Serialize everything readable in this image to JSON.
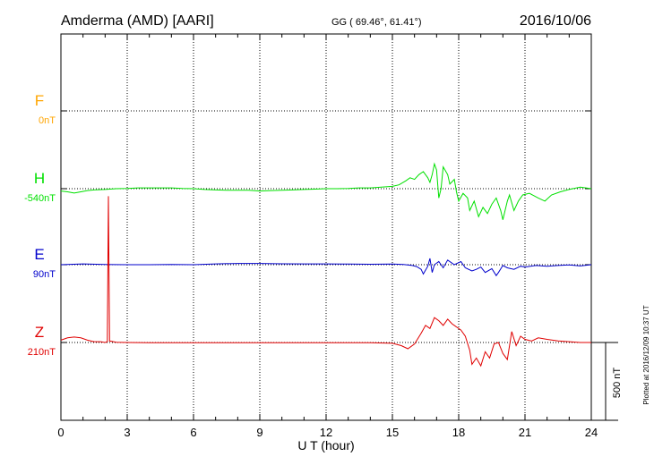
{
  "header": {
    "station": "Amderma (AMD)  [AARI]",
    "coords": "GG ( 69.46°,  61.41°)",
    "date": "2016/10/06"
  },
  "footer": {
    "plotted": "Plotted at 2016/12/09 10:37 UT"
  },
  "scale": {
    "label": "500 nT",
    "value_nT": 500
  },
  "colors": {
    "F": "#ffa500",
    "H": "#00e000",
    "E": "#0000cc",
    "Z": "#e00000",
    "axis": "#000000",
    "grid": "#000000"
  },
  "chart_data": {
    "type": "line",
    "xlabel": "U T (hour)",
    "xlim": [
      0,
      24
    ],
    "xticks": [
      0,
      3,
      6,
      9,
      12,
      15,
      18,
      21,
      24
    ],
    "grid": true,
    "series": [
      {
        "name": "F",
        "baseline_label": "0nT",
        "baseline_nT": 0,
        "points": []
      },
      {
        "name": "H",
        "baseline_label": "-540nT",
        "baseline_nT": -540,
        "points": [
          [
            0,
            -555
          ],
          [
            0.3,
            -560
          ],
          [
            0.6,
            -568
          ],
          [
            0.9,
            -560
          ],
          [
            1.2,
            -552
          ],
          [
            1.5,
            -548
          ],
          [
            2,
            -545
          ],
          [
            2.5,
            -540
          ],
          [
            3,
            -538
          ],
          [
            3.5,
            -535
          ],
          [
            4,
            -535
          ],
          [
            4.5,
            -535
          ],
          [
            5,
            -535
          ],
          [
            5.5,
            -538
          ],
          [
            6,
            -540
          ],
          [
            6.5,
            -545
          ],
          [
            7,
            -548
          ],
          [
            7.5,
            -550
          ],
          [
            8,
            -550
          ],
          [
            8.5,
            -550
          ],
          [
            9,
            -555
          ],
          [
            9.5,
            -552
          ],
          [
            10,
            -550
          ],
          [
            10.5,
            -548
          ],
          [
            11,
            -545
          ],
          [
            11.5,
            -543
          ],
          [
            12,
            -540
          ],
          [
            12.5,
            -540
          ],
          [
            13,
            -538
          ],
          [
            13.5,
            -535
          ],
          [
            14,
            -535
          ],
          [
            14.5,
            -530
          ],
          [
            15,
            -525
          ],
          [
            15.3,
            -515
          ],
          [
            15.6,
            -490
          ],
          [
            15.8,
            -470
          ],
          [
            16,
            -480
          ],
          [
            16.2,
            -450
          ],
          [
            16.4,
            -430
          ],
          [
            16.6,
            -470
          ],
          [
            16.7,
            -500
          ],
          [
            16.8,
            -450
          ],
          [
            16.9,
            -380
          ],
          [
            17,
            -420
          ],
          [
            17.1,
            -600
          ],
          [
            17.2,
            -540
          ],
          [
            17.3,
            -400
          ],
          [
            17.5,
            -450
          ],
          [
            17.6,
            -510
          ],
          [
            17.8,
            -480
          ],
          [
            17.9,
            -560
          ],
          [
            18,
            -620
          ],
          [
            18.2,
            -570
          ],
          [
            18.4,
            -600
          ],
          [
            18.5,
            -680
          ],
          [
            18.7,
            -620
          ],
          [
            18.9,
            -720
          ],
          [
            19.1,
            -660
          ],
          [
            19.3,
            -700
          ],
          [
            19.5,
            -640
          ],
          [
            19.7,
            -600
          ],
          [
            19.9,
            -680
          ],
          [
            20,
            -740
          ],
          [
            20.2,
            -620
          ],
          [
            20.3,
            -580
          ],
          [
            20.5,
            -680
          ],
          [
            20.7,
            -620
          ],
          [
            20.9,
            -580
          ],
          [
            21.2,
            -570
          ],
          [
            21.6,
            -600
          ],
          [
            21.9,
            -620
          ],
          [
            22.2,
            -580
          ],
          [
            22.6,
            -560
          ],
          [
            23,
            -545
          ],
          [
            23.5,
            -530
          ],
          [
            24,
            -540
          ]
        ]
      },
      {
        "name": "E",
        "baseline_label": "90nT",
        "baseline_nT": 90,
        "points": [
          [
            0,
            90
          ],
          [
            1,
            95
          ],
          [
            2,
            92
          ],
          [
            3,
            90
          ],
          [
            4,
            90
          ],
          [
            5,
            92
          ],
          [
            6,
            90
          ],
          [
            7,
            95
          ],
          [
            8,
            98
          ],
          [
            9,
            98
          ],
          [
            10,
            96
          ],
          [
            11,
            95
          ],
          [
            12,
            95
          ],
          [
            13,
            94
          ],
          [
            14,
            93
          ],
          [
            15,
            94
          ],
          [
            15.5,
            92
          ],
          [
            15.9,
            85
          ],
          [
            16.1,
            78
          ],
          [
            16.3,
            60
          ],
          [
            16.4,
            30
          ],
          [
            16.6,
            80
          ],
          [
            16.7,
            130
          ],
          [
            16.8,
            40
          ],
          [
            16.9,
            90
          ],
          [
            17.1,
            110
          ],
          [
            17.3,
            70
          ],
          [
            17.5,
            120
          ],
          [
            17.8,
            90
          ],
          [
            18.1,
            110
          ],
          [
            18.3,
            70
          ],
          [
            18.6,
            50
          ],
          [
            18.8,
            60
          ],
          [
            19,
            75
          ],
          [
            19.2,
            40
          ],
          [
            19.5,
            65
          ],
          [
            19.7,
            20
          ],
          [
            19.8,
            40
          ],
          [
            20,
            85
          ],
          [
            20.2,
            70
          ],
          [
            20.5,
            60
          ],
          [
            20.8,
            80
          ],
          [
            21,
            75
          ],
          [
            21.5,
            85
          ],
          [
            22,
            80
          ],
          [
            22.5,
            85
          ],
          [
            23,
            88
          ],
          [
            23.5,
            82
          ],
          [
            24,
            90
          ]
        ]
      },
      {
        "name": "Z",
        "baseline_label": "210nT",
        "baseline_nT": 210,
        "points": [
          [
            0,
            225
          ],
          [
            0.3,
            240
          ],
          [
            0.6,
            245
          ],
          [
            0.9,
            240
          ],
          [
            1.2,
            225
          ],
          [
            1.5,
            215
          ],
          [
            1.8,
            215
          ],
          [
            2,
            210
          ],
          [
            2.1,
            215
          ],
          [
            2.15,
            1150
          ],
          [
            2.2,
            220
          ],
          [
            2.5,
            212
          ],
          [
            3,
            210
          ],
          [
            4,
            208
          ],
          [
            5,
            208
          ],
          [
            6,
            208
          ],
          [
            7,
            208
          ],
          [
            8,
            208
          ],
          [
            9,
            208
          ],
          [
            10,
            208
          ],
          [
            11,
            208
          ],
          [
            12,
            208
          ],
          [
            13,
            208
          ],
          [
            14,
            208
          ],
          [
            15,
            205
          ],
          [
            15.4,
            190
          ],
          [
            15.7,
            170
          ],
          [
            16,
            200
          ],
          [
            16.3,
            270
          ],
          [
            16.5,
            320
          ],
          [
            16.7,
            300
          ],
          [
            16.9,
            370
          ],
          [
            17.1,
            350
          ],
          [
            17.3,
            320
          ],
          [
            17.5,
            360
          ],
          [
            17.7,
            330
          ],
          [
            17.9,
            310
          ],
          [
            18.1,
            290
          ],
          [
            18.3,
            250
          ],
          [
            18.5,
            160
          ],
          [
            18.6,
            70
          ],
          [
            18.8,
            110
          ],
          [
            19,
            60
          ],
          [
            19.2,
            150
          ],
          [
            19.4,
            110
          ],
          [
            19.6,
            200
          ],
          [
            19.8,
            210
          ],
          [
            20,
            140
          ],
          [
            20.2,
            100
          ],
          [
            20.4,
            280
          ],
          [
            20.6,
            190
          ],
          [
            20.8,
            250
          ],
          [
            21,
            230
          ],
          [
            21.3,
            220
          ],
          [
            21.6,
            240
          ],
          [
            22,
            230
          ],
          [
            22.5,
            220
          ],
          [
            23,
            215
          ],
          [
            23.5,
            210
          ],
          [
            24,
            210
          ]
        ]
      }
    ]
  }
}
